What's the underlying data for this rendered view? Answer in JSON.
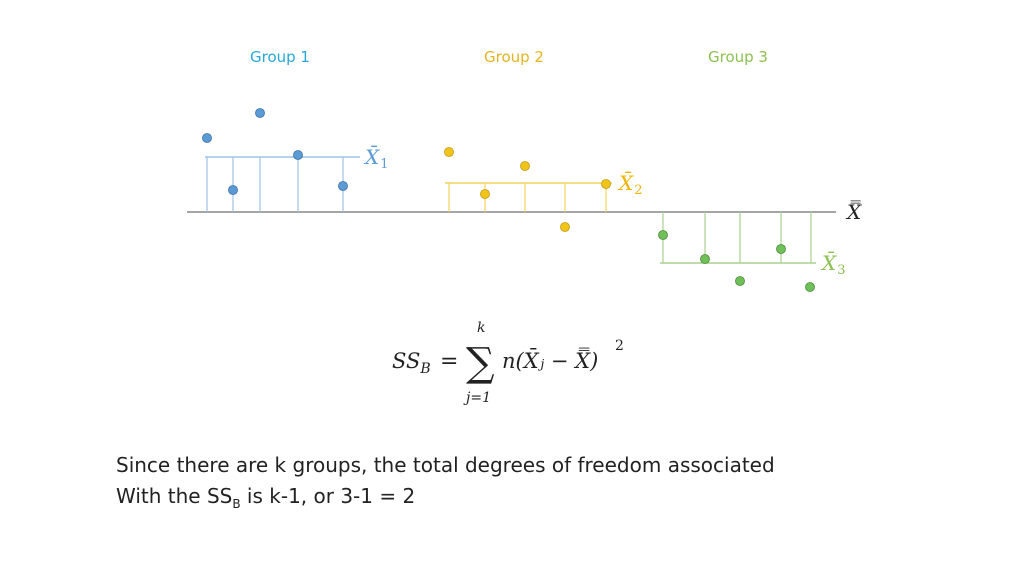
{
  "groups": [
    {
      "label": "Group 1",
      "color": "#2aa7d9",
      "point_color": "#5b9bd5",
      "line_color": "#9dc3e6",
      "mean_symbol": "X̄",
      "mean_subscript": "1"
    },
    {
      "label": "Group 2",
      "color": "#e6b422",
      "point_color": "#f0c419",
      "line_color": "#f4d35e",
      "mean_symbol": "X̄",
      "mean_subscript": "2"
    },
    {
      "label": "Group 3",
      "color": "#8cc152",
      "point_color": "#70c05a",
      "line_color": "#a9d18e",
      "mean_symbol": "X̄",
      "mean_subscript": "3"
    }
  ],
  "grand_mean_symbol": "X̿",
  "formula": {
    "lhs": "SS",
    "lhs_sub": "B",
    "equals": "=",
    "sum": "∑",
    "upper": "k",
    "lower": "j=1",
    "body": "n(X̄ⱼ − X̿)",
    "power": "2"
  },
  "text": {
    "line1": "Since there are k groups, the total degrees of freedom associated",
    "line2_a": "With the SS",
    "line2_sub": "B",
    "line2_b": " is k-1, or 3-1 = 2"
  }
}
